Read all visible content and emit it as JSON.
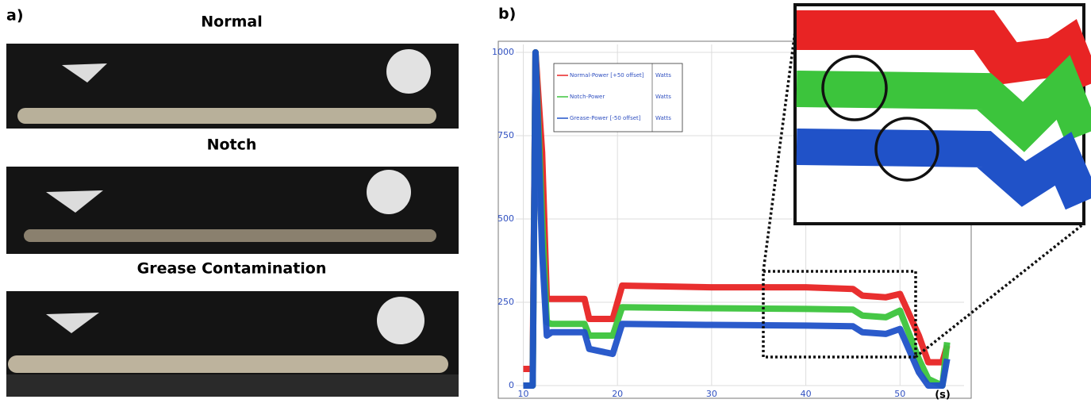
{
  "panel_a": {
    "label": "a)",
    "photos": [
      {
        "title": "Normal"
      },
      {
        "title": "Notch"
      },
      {
        "title": "Grease Contamination"
      }
    ]
  },
  "panel_b": {
    "label": "b)"
  },
  "chart_data": {
    "type": "line",
    "xlabel": "(s)",
    "x": [
      10,
      11,
      11.3,
      12,
      12.5,
      13,
      16.5,
      17,
      19.5,
      20.5,
      30,
      40,
      45,
      46,
      48.5,
      50,
      52,
      53,
      54.5,
      55
    ],
    "xlim": [
      9.2,
      56.8
    ],
    "xticks": [
      10,
      20,
      30,
      40,
      50
    ],
    "ylim": [
      0,
      1000
    ],
    "yticks": [
      0,
      250,
      500,
      750,
      1000
    ],
    "grid": true,
    "series": [
      {
        "name": "Normal-Power [+50 offset]",
        "unit": "Watts",
        "color": "#e82424",
        "values": [
          50,
          50,
          1000,
          700,
          260,
          260,
          260,
          200,
          200,
          300,
          295,
          295,
          290,
          270,
          265,
          275,
          150,
          70,
          70,
          120
        ]
      },
      {
        "name": "Notch-Power",
        "unit": "Watts",
        "color": "#3cc43c",
        "values": [
          0,
          0,
          1000,
          500,
          190,
          185,
          185,
          150,
          150,
          235,
          232,
          230,
          228,
          210,
          205,
          225,
          80,
          20,
          0,
          130
        ]
      },
      {
        "name": "Grease-Power [-50 offset]",
        "unit": "Watts",
        "color": "#2052c8",
        "values": [
          0,
          0,
          1000,
          400,
          150,
          160,
          160,
          110,
          95,
          185,
          182,
          180,
          178,
          160,
          155,
          170,
          40,
          0,
          0,
          80
        ]
      }
    ]
  }
}
